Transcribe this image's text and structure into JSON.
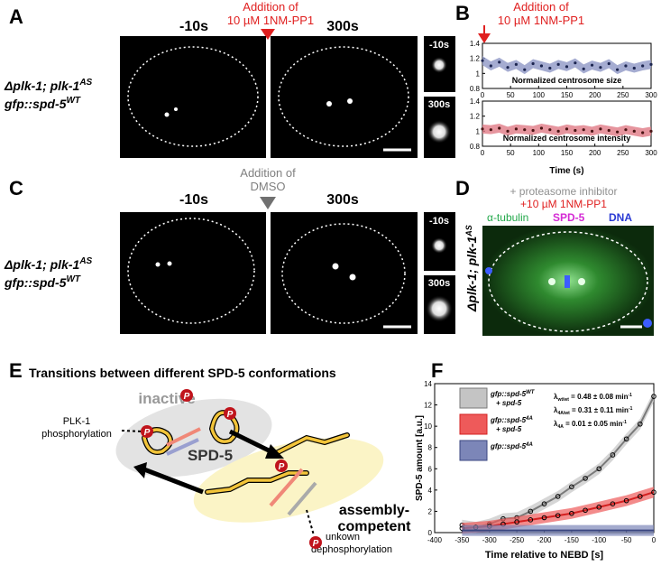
{
  "panels": {
    "A": {
      "label": "A",
      "annotation": [
        "Addition of",
        "10 µM 1NM-PP1"
      ],
      "frames": [
        "-10s",
        "300s"
      ],
      "inset_frames": [
        "-10s",
        "300s"
      ],
      "genotype": {
        "line1": [
          "Δplk-1; plk-1",
          "AS"
        ],
        "line2": [
          "gfp::spd-5",
          "WT"
        ]
      }
    },
    "B": {
      "label": "B",
      "annotation": [
        "Addition of",
        "10 µM 1NM-PP1"
      ],
      "x": [
        0,
        15,
        30,
        45,
        60,
        75,
        90,
        105,
        120,
        135,
        150,
        165,
        180,
        195,
        210,
        225,
        240,
        255,
        270,
        285,
        300
      ],
      "xlim": [
        0,
        300
      ],
      "xticks": [
        0,
        50,
        100,
        150,
        200,
        250,
        300
      ],
      "ylim": [
        0.8,
        1.4
      ],
      "yticks": [
        0.8,
        1,
        1.2,
        1.4
      ],
      "xlabel": "Time  (s)",
      "plots": [
        {
          "title": "Normalized centrosome size",
          "color": "#1c2550",
          "band_color": "#8f97c6",
          "values": [
            1.17,
            1.1,
            1.15,
            1.08,
            1.12,
            1.05,
            1.13,
            1.1,
            1.07,
            1.12,
            1.09,
            1.14,
            1.06,
            1.11,
            1.08,
            1.13,
            1.05,
            1.1,
            1.07,
            1.1,
            1.12
          ]
        },
        {
          "title": "Normalized centrosome intensity",
          "color": "#4a1414",
          "band_color": "#e07a86",
          "values": [
            1.03,
            1.02,
            1.04,
            1.0,
            1.03,
            1.02,
            1.01,
            1.04,
            1.02,
            1.0,
            1.03,
            1.01,
            1.02,
            1.0,
            1.03,
            1.01,
            0.99,
            1.02,
            1.0,
            0.98,
            1.0
          ]
        }
      ]
    },
    "C": {
      "label": "C",
      "annotation": [
        "Addition of",
        "DMSO"
      ],
      "frames": [
        "-10s",
        "300s"
      ],
      "inset_frames": [
        "-10s",
        "300s"
      ],
      "genotype": {
        "line1": [
          "Δplk-1; plk-1",
          "AS"
        ],
        "line2": [
          "gfp::spd-5",
          "WT"
        ]
      }
    },
    "D": {
      "label": "D",
      "treatment": [
        "+ proteasome inhibitor",
        "+10 µM 1NM-PP1"
      ],
      "channels": [
        "α-tubulin",
        "SPD-5",
        "DNA"
      ],
      "genotype": [
        "Δplk-1; plk-1",
        "AS"
      ]
    },
    "E": {
      "label": "E",
      "title": "Transitions between different SPD-5 conformations",
      "inactive": "inactive",
      "protein": "SPD-5",
      "competent": [
        "assembly-",
        "competent"
      ],
      "kinase": [
        "PLK-1",
        "phosphorylation"
      ],
      "phosphatase": [
        "unkown",
        "dephosphorylation"
      ],
      "phospho": "P"
    },
    "F": {
      "label": "F",
      "ylabel": "SPD-5 amount [a.u.]",
      "xlabel": "Time relative to NEBD [s]",
      "xlim": [
        -400,
        0
      ],
      "xticks": [
        -400,
        -350,
        -300,
        -250,
        -200,
        -150,
        -100,
        -50,
        0
      ],
      "ylim": [
        0,
        14
      ],
      "yticks": [
        0,
        2,
        4,
        6,
        8,
        10,
        12,
        14
      ],
      "x": [
        -350,
        -325,
        -300,
        -275,
        -250,
        -225,
        -200,
        -175,
        -150,
        -125,
        -100,
        -75,
        -50,
        -25,
        0
      ],
      "series": [
        {
          "name": [
            "gfp::spd-5",
            "WT",
            "+ spd-5"
          ],
          "color": "#7a7a7a",
          "band_color": "#c4c4c4",
          "markers": true,
          "values": [
            0.7,
            0.5,
            0.8,
            1.3,
            1.4,
            2.0,
            2.7,
            3.4,
            4.3,
            5.1,
            6.0,
            7.3,
            8.8,
            10.2,
            12.8
          ]
        },
        {
          "name": [
            "gfp::spd-5",
            "4A",
            "+ spd-5"
          ],
          "color": "#d42020",
          "band_color": "#ee5a5a",
          "markers": true,
          "values": [
            0.4,
            0.5,
            0.6,
            0.8,
            1.0,
            1.2,
            1.4,
            1.6,
            1.8,
            2.1,
            2.4,
            2.7,
            3.0,
            3.4,
            3.8
          ]
        },
        {
          "name": [
            "gfp::spd-5",
            "4A",
            ""
          ],
          "color": "#3a4680",
          "band_color": "#7c86b8",
          "markers": false,
          "values": [
            0.2,
            0.2,
            0.2,
            0.2,
            0.2,
            0.2,
            0.2,
            0.2,
            0.2,
            0.2,
            0.2,
            0.2,
            0.2,
            0.2,
            0.2
          ]
        }
      ],
      "rates": [
        [
          "λ",
          "wt/wt",
          " = 0.48 ± 0.08 min",
          "-1"
        ],
        [
          "λ",
          "4A/wt",
          " = 0.31 ± 0.11 min",
          "-1"
        ],
        [
          "λ",
          "4A",
          " = 0.01 ± 0.05 min",
          "-1"
        ]
      ]
    }
  }
}
